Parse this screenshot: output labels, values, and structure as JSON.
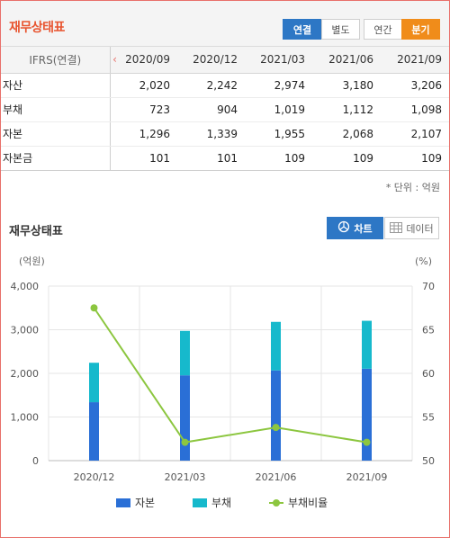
{
  "header": {
    "title": "재무상태표",
    "toggle_consolidated": "연결",
    "toggle_separate": "별도",
    "toggle_annual": "연간",
    "toggle_quarter": "분기"
  },
  "table": {
    "label_header": "IFRS(연결)",
    "prev_arrow": "‹",
    "columns": [
      "2020/09",
      "2020/12",
      "2021/03",
      "2021/06",
      "2021/09"
    ],
    "rows": [
      {
        "label": "자산",
        "values": [
          "2,020",
          "2,242",
          "2,974",
          "3,180",
          "3,206"
        ]
      },
      {
        "label": "부채",
        "values": [
          "723",
          "904",
          "1,019",
          "1,112",
          "1,098"
        ]
      },
      {
        "label": "자본",
        "values": [
          "1,296",
          "1,339",
          "1,955",
          "2,068",
          "2,107"
        ]
      },
      {
        "label": "자본금",
        "values": [
          "101",
          "101",
          "109",
          "109",
          "109"
        ]
      }
    ]
  },
  "unit_note": "* 단위 : 억원",
  "chart_section": {
    "title": "재무상태표",
    "chart_button": "차트",
    "data_button": "데이터"
  },
  "chart_data": {
    "type": "bar",
    "stacked": true,
    "categories": [
      "2020/12",
      "2021/03",
      "2021/06",
      "2021/09"
    ],
    "left_axis_unit": "(억원)",
    "right_axis_unit": "(%)",
    "left_ylim": [
      0,
      4000
    ],
    "left_ticks": [
      "0",
      "1,000",
      "2,000",
      "3,000",
      "4,000"
    ],
    "right_ylim": [
      50,
      70
    ],
    "right_ticks": [
      "50",
      "55",
      "60",
      "65",
      "70"
    ],
    "series": [
      {
        "name": "자본",
        "type": "bar",
        "axis": "left",
        "color": "#2a6fd6",
        "values": [
          1339,
          1955,
          2068,
          2107
        ]
      },
      {
        "name": "부채",
        "type": "bar",
        "axis": "left",
        "color": "#16b9cc",
        "values": [
          904,
          1019,
          1112,
          1098
        ]
      },
      {
        "name": "부채비율",
        "type": "line",
        "axis": "right",
        "color": "#8cc63f",
        "values": [
          67.5,
          52.1,
          53.8,
          52.1
        ]
      }
    ],
    "grid": true,
    "legend": "bottom"
  }
}
